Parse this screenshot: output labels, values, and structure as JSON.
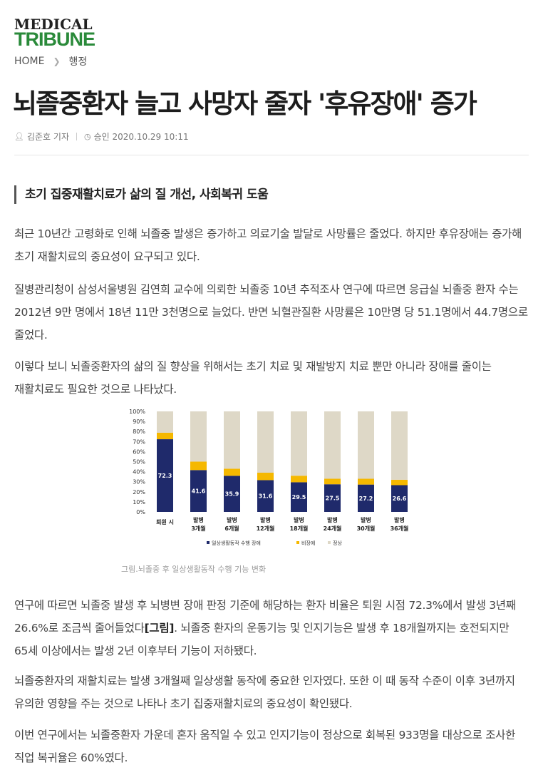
{
  "logo": {
    "line1": "MEDICAL",
    "line2": "TRIBUNE"
  },
  "breadcrumb": {
    "home": "HOME",
    "section": "행정"
  },
  "article": {
    "title": "뇌졸중환자 늘고 사망자 줄자 '후유장애' 증가",
    "author": "김준호 기자",
    "approved": "승인 2020.10.29 10:11",
    "subtitle": "초기 집중재활치료가 삶의 질 개선, 사회복귀 도움",
    "p1": "최근 10년간 고령화로 인해 뇌졸중 발생은 증가하고 의료기술 발달로 사망률은 줄었다. 하지만 후유장애는 증가해 초기 재활치료의 중요성이 요구되고 있다.",
    "p2": "질병관리청이 삼성서울병원 김연희 교수에 의뢰한 뇌졸중 10년 추적조사 연구에 따르면 응급실 뇌졸중 환자 수는 2012년 9만 명에서 18년 11만 3천명으로 늘었다. 반면 뇌혈관질환 사망률은 10만명 당 51.1명에서 44.7명으로 줄었다.",
    "p3": "이렇다 보니 뇌졸중환자의 삶의 질 향상을 위해서는 초기 치료 및 재발방지 치료 뿐만 아니라 장애를 줄이는 재활치료도 필요한 것으로 나타났다.",
    "caption": "그림.뇌졸중 후 일상생활동작 수행 기능 변화",
    "p4_pre": "연구에 따르면 뇌졸중 발생 후 뇌병변 장애 판정 기준에 해당하는 환자 비율은 퇴원 시점 72.3%에서 발생 3년째 26.6%로 조금씩 줄어들었다",
    "p4_bold": "[그림]",
    "p4_post": ". 뇌졸중 환자의 운동기능 및 인지기능은 발생 후 18개월까지는 호전되지만 65세 이상에서는 발생 2년 이후부터 기능이 저하됐다.",
    "p5": "뇌졸중환자의 재활치료는 발생 3개월째 일상생활 동작에 중요한 인자였다. 또한 이 때 동작 수준이 이후 3년까지 유의한 영향을 주는 것으로 나타나 초기 집중재활치료의 중요성이 확인됐다.",
    "p6": "이번 연구에서는 뇌졸중환자 가운데 혼자 움직일 수 있고 인지기능이 정상으로 회복된 933명을 대상으로 조사한 직업 복귀율은 60%였다."
  },
  "icons": {
    "author": "person-icon",
    "time": "clock-icon",
    "crumb_sep": "chevron-right-icon"
  },
  "colors": {
    "brand_green": "#2a8a3a",
    "impair": "#1f2a6b",
    "nonimpair": "#f5b800",
    "normal": "#ded8c7"
  },
  "chart_data": {
    "type": "bar",
    "stacked": true,
    "categories": [
      [
        "퇴원 시"
      ],
      [
        "발병",
        "3개월"
      ],
      [
        "발병",
        "6개월"
      ],
      [
        "발병",
        "12개월"
      ],
      [
        "발병",
        "18개월"
      ],
      [
        "발병",
        "24개월"
      ],
      [
        "발병",
        "30개월"
      ],
      [
        "발병",
        "36개월"
      ]
    ],
    "series": [
      {
        "name": "일상생활동작 수행 장애",
        "values": [
          72.3,
          41.6,
          35.9,
          31.6,
          29.5,
          27.5,
          27.2,
          26.6
        ],
        "color": "#1f2a6b"
      },
      {
        "name": "비장애",
        "values": [
          6.5,
          8.4,
          7.1,
          7.4,
          6.5,
          5.5,
          5.8,
          5.4
        ],
        "color": "#f5b800"
      },
      {
        "name": "정상",
        "values": [
          21.2,
          50.0,
          57.0,
          61.0,
          64.0,
          67.0,
          67.0,
          68.0
        ],
        "color": "#ded8c7"
      }
    ],
    "data_labels": [
      "72.3",
      "41.6",
      "35.9",
      "31.6",
      "29.5",
      "27.5",
      "27.2",
      "26.6"
    ],
    "yticks": [
      "0%",
      "10%",
      "20%",
      "30%",
      "40%",
      "50%",
      "60%",
      "70%",
      "80%",
      "90%",
      "100%"
    ],
    "ylim": [
      0,
      100
    ],
    "legend_position": "bottom"
  }
}
